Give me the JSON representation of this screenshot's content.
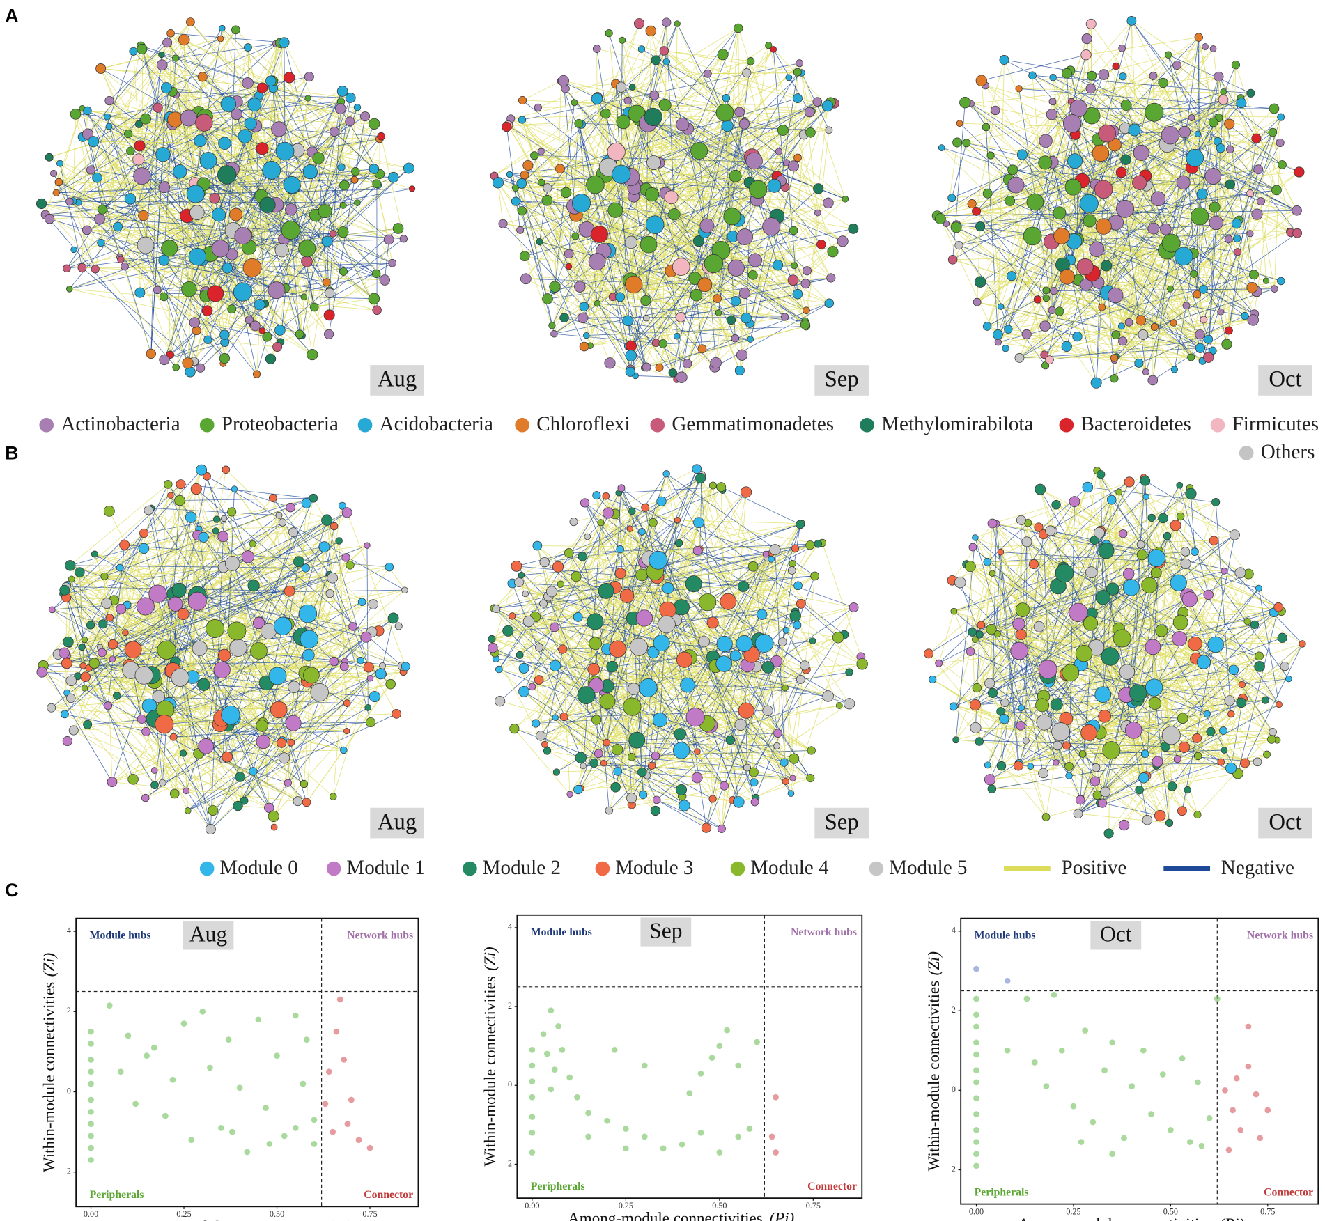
{
  "panels": {
    "a": "A",
    "b": "B",
    "c": "C"
  },
  "network_a": {
    "tags": [
      "Aug",
      "Sep",
      "Oct"
    ]
  },
  "network_b": {
    "tags": [
      "Aug",
      "Sep",
      "Oct"
    ]
  },
  "legend_a": [
    {
      "label": "Actinobacteria",
      "color": "#a77fb2"
    },
    {
      "label": "Proteobacteria",
      "color": "#5aa632"
    },
    {
      "label": "Acidobacteria",
      "color": "#27a9d6"
    },
    {
      "label": "Chloroflexi",
      "color": "#e07b2a"
    },
    {
      "label": "Gemmatimonadetes",
      "color": "#c85a7a"
    },
    {
      "label": "Methylomirabilota",
      "color": "#1f7d5c"
    },
    {
      "label": "Bacteroidetes",
      "color": "#d8242a"
    },
    {
      "label": "Firmicutes",
      "color": "#f2b6c0"
    },
    {
      "label": "Others",
      "color": "#c4c4c4"
    }
  ],
  "legend_b": [
    {
      "label": "Module 0",
      "color": "#33b7ea"
    },
    {
      "label": "Module 1",
      "color": "#c07ac6"
    },
    {
      "label": "Module 2",
      "color": "#238a64"
    },
    {
      "label": "Module 3",
      "color": "#f06a45"
    },
    {
      "label": "Module 4",
      "color": "#8ab82c"
    },
    {
      "label": "Module 5",
      "color": "#c6c6c6"
    },
    {
      "label": "Positive",
      "color": "#dcdc5a"
    },
    {
      "label": "Negative",
      "color": "#1f4a9a"
    }
  ],
  "chart_data": [
    {
      "type": "scatter",
      "title": "Aug",
      "xlabel": "Among-module connectivities",
      "xlabel_italic": "(Pi)",
      "ylabel": "Within-module connectivities",
      "ylabel_italic": "(Zi)",
      "xlim": [
        -0.04,
        0.88
      ],
      "ylim": [
        -2.86,
        4.32
      ],
      "xticks": [
        {
          "value": 0,
          "label": "0.00"
        },
        {
          "value": 0.25,
          "label": "0.25"
        },
        {
          "value": 0.5,
          "label": "0.50"
        },
        {
          "value": 0.75,
          "label": "0.75"
        }
      ],
      "yticks": [
        4,
        2,
        0,
        {
          "value": -2,
          "label": "2"
        }
      ],
      "hline": 2.5,
      "vline": 0.62,
      "annotations": [
        {
          "text": "Module hubs",
          "color": "#1f3a7a",
          "corner": "top-left"
        },
        {
          "text": "Network hubs",
          "color": "#a070a8",
          "corner": "top-right"
        },
        {
          "text": "Peripherals",
          "color": "#5aa632",
          "corner": "bottom-left"
        },
        {
          "text": "Connector",
          "color": "#c03a3a",
          "corner": "bottom-right"
        }
      ],
      "series": [
        {
          "color": "#7cc46a",
          "x": [
            0,
            0,
            0,
            0,
            0,
            0,
            0,
            0,
            0,
            0,
            0,
            0.05,
            0.08,
            0.1,
            0.12,
            0.15,
            0.17,
            0.2,
            0.22,
            0.25,
            0.27,
            0.3,
            0.32,
            0.35,
            0.37,
            0.4,
            0.42,
            0.45,
            0.47,
            0.5,
            0.52,
            0.55,
            0.57,
            0.6,
            0.58,
            0.6,
            0.55,
            0.48,
            0.38
          ],
          "values": [
            1.5,
            1.2,
            0.8,
            0.5,
            0.2,
            -0.2,
            -0.5,
            -0.8,
            -1.1,
            -1.4,
            -1.7,
            2.15,
            0.5,
            1.4,
            -0.3,
            0.9,
            1.1,
            -0.6,
            0.3,
            1.7,
            -1.2,
            2.0,
            0.6,
            -0.9,
            1.3,
            0.1,
            -1.5,
            1.8,
            -0.4,
            0.9,
            -1.1,
            1.9,
            0.2,
            -0.7,
            1.3,
            -1.3,
            -0.9,
            -1.3,
            -1.0
          ]
        },
        {
          "color": "#d9676a",
          "x": [
            0.64,
            0.66,
            0.68,
            0.7,
            0.65,
            0.72,
            0.67,
            0.75,
            0.63,
            0.69
          ],
          "values": [
            0.5,
            1.5,
            0.8,
            -0.2,
            -1.0,
            -1.2,
            2.3,
            -1.4,
            -0.3,
            -0.8
          ]
        }
      ]
    },
    {
      "type": "scatter",
      "title": "Sep",
      "xlabel": "Among-module connectivities",
      "xlabel_italic": "(Pi)",
      "ylabel": "Within-module connectivities",
      "ylabel_italic": "(Zi)",
      "xlim": [
        -0.04,
        0.88
      ],
      "ylim": [
        -2.86,
        4.32
      ],
      "xticks": [
        {
          "value": 0,
          "label": "0.00"
        },
        {
          "value": 0.25,
          "label": "0.25"
        },
        {
          "value": 0.5,
          "label": "0.50"
        },
        {
          "value": 0.75,
          "label": "0.75"
        }
      ],
      "yticks": [
        4,
        2,
        0,
        {
          "value": -2,
          "label": "2"
        }
      ],
      "hline": 2.5,
      "vline": 0.62,
      "annotations": [
        {
          "text": "Module hubs",
          "color": "#1f3a7a",
          "corner": "top-left"
        },
        {
          "text": "Network hubs",
          "color": "#a070a8",
          "corner": "top-right"
        },
        {
          "text": "Peripherals",
          "color": "#5aa632",
          "corner": "bottom-left"
        },
        {
          "text": "Connector",
          "color": "#c03a3a",
          "corner": "bottom-right"
        }
      ],
      "series": [
        {
          "color": "#7cc46a",
          "x": [
            0,
            0,
            0,
            0,
            0,
            0,
            0,
            0.03,
            0.04,
            0.05,
            0.06,
            0.07,
            0.08,
            0.05,
            0.1,
            0.12,
            0.15,
            0.2,
            0.25,
            0.3,
            0.35,
            0.4,
            0.45,
            0.5,
            0.55,
            0.42,
            0.45,
            0.48,
            0.5,
            0.52,
            0.55,
            0.6,
            0.3,
            0.22,
            0.15,
            0.25,
            0.58
          ],
          "values": [
            0.9,
            0.5,
            0.1,
            -0.3,
            -0.8,
            -1.2,
            -1.7,
            1.3,
            0.8,
            1.9,
            0.4,
            1.5,
            0.9,
            -0.1,
            0.2,
            -0.3,
            -0.7,
            -0.9,
            -1.1,
            -1.3,
            -1.6,
            -1.5,
            -1.2,
            -1.7,
            -1.3,
            -0.2,
            0.3,
            0.7,
            1.0,
            1.4,
            0.5,
            1.1,
            0.5,
            0.9,
            -1.3,
            -1.6,
            -1.1
          ]
        },
        {
          "color": "#d9676a",
          "x": [
            0.65,
            0.64,
            0.65
          ],
          "values": [
            -0.3,
            -1.3,
            -1.7
          ]
        }
      ]
    },
    {
      "type": "scatter",
      "title": "Oct",
      "xlabel": "Among-module connectivities",
      "xlabel_italic": "(Pi)",
      "ylabel": "Within-module connectivities",
      "ylabel_italic": "(Zi)",
      "xlim": [
        -0.04,
        0.88
      ],
      "ylim": [
        -2.86,
        4.32
      ],
      "xticks": [
        {
          "value": 0,
          "label": "0.00"
        },
        {
          "value": 0.25,
          "label": "0.25"
        },
        {
          "value": 0.5,
          "label": "0.50"
        },
        {
          "value": 0.75,
          "label": "0.75"
        }
      ],
      "yticks": [
        4,
        2,
        0,
        {
          "value": -2,
          "label": "2"
        }
      ],
      "hline": 2.5,
      "vline": 0.62,
      "annotations": [
        {
          "text": "Module hubs",
          "color": "#1f3a7a",
          "corner": "top-left"
        },
        {
          "text": "Network hubs",
          "color": "#a070a8",
          "corner": "top-right"
        },
        {
          "text": "Peripherals",
          "color": "#5aa632",
          "corner": "bottom-left"
        },
        {
          "text": "Connector",
          "color": "#c03a3a",
          "corner": "bottom-right"
        }
      ],
      "series": [
        {
          "color": "#7cc46a",
          "x": [
            0,
            0,
            0,
            0,
            0,
            0,
            0,
            0,
            0,
            0,
            0,
            0,
            0,
            0.13,
            0.2,
            0.15,
            0.18,
            0.22,
            0.25,
            0.28,
            0.3,
            0.33,
            0.35,
            0.38,
            0.4,
            0.43,
            0.45,
            0.48,
            0.5,
            0.53,
            0.55,
            0.57,
            0.6,
            0.62,
            0.35,
            0.27,
            0.58,
            0.08
          ],
          "values": [
            2.3,
            1.9,
            1.6,
            1.2,
            0.9,
            0.5,
            0.2,
            -0.2,
            -0.6,
            -1.0,
            -1.3,
            -1.6,
            -1.9,
            2.3,
            2.4,
            0.7,
            0.1,
            1.0,
            -0.4,
            1.5,
            -0.8,
            0.5,
            1.2,
            -1.2,
            0.1,
            1.0,
            -0.6,
            0.4,
            -1.0,
            0.8,
            -1.3,
            0.2,
            -0.7,
            2.3,
            -1.6,
            -1.3,
            -1.4,
            1.0
          ]
        },
        {
          "color": "#d9676a",
          "x": [
            0.64,
            0.66,
            0.7,
            0.72,
            0.68,
            0.75,
            0.65,
            0.7,
            0.73,
            0.67
          ],
          "values": [
            0.0,
            -0.5,
            1.6,
            -0.1,
            -1.0,
            -0.5,
            -1.5,
            0.6,
            -1.2,
            0.3
          ]
        },
        {
          "color": "#7b8fd0",
          "x": [
            0,
            0.08
          ],
          "values": [
            3.05,
            2.75
          ]
        }
      ]
    }
  ]
}
